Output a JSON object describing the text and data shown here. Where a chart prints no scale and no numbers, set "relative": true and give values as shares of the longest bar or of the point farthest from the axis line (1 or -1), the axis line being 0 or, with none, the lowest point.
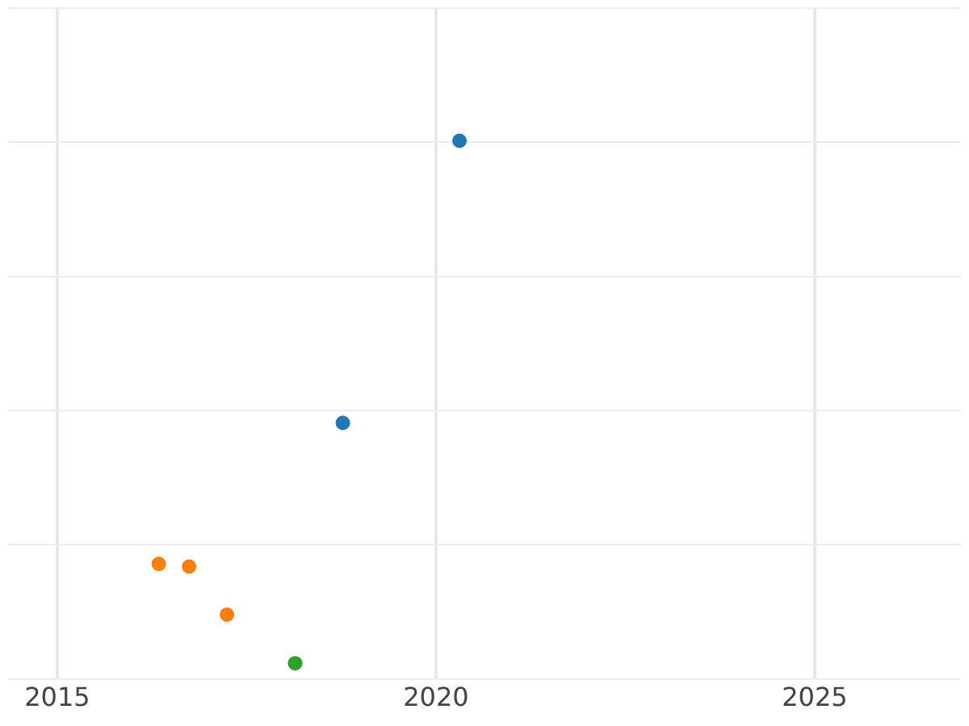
{
  "chart_data": {
    "type": "scatter",
    "relative": true,
    "marker": "circle",
    "grid": true,
    "legend": false,
    "tick_labels": "x",
    "xlim": [
      2014.35,
      2026.93
    ],
    "xticks": [
      2015,
      2020,
      2025
    ],
    "series": [
      {
        "color": "#1f77b4",
        "x": [
          2020.31,
          2018.77
        ],
        "values": [
          1,
          0.46
        ]
      },
      {
        "color": "#ff7f0e",
        "x": [
          2016.34,
          2016.74,
          2017.24
        ],
        "values": [
          0.19,
          0.185,
          0.093
        ]
      },
      {
        "color": "#2ca02c",
        "x": [
          2018.14
        ],
        "values": [
          0
        ]
      }
    ]
  }
}
